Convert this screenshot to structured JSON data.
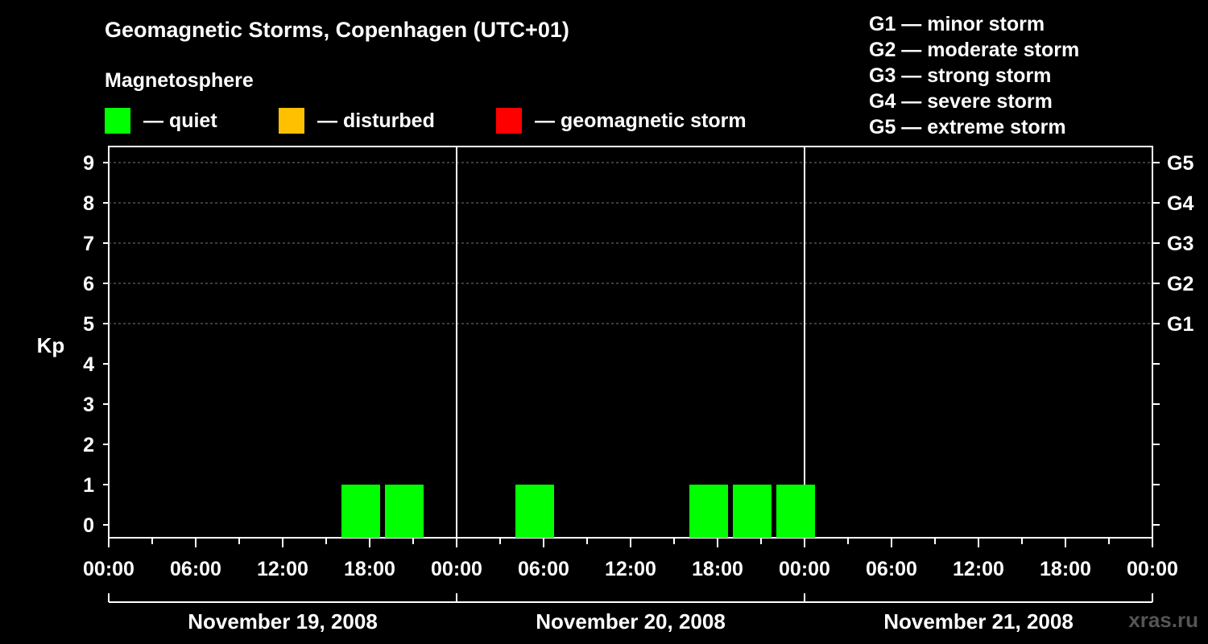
{
  "title": "Geomagnetic Storms, Copenhagen (UTC+01)",
  "legend": {
    "heading": "Magnetosphere",
    "items": [
      {
        "label": "— quiet",
        "color": "#00ff00"
      },
      {
        "label": "— disturbed",
        "color": "#ffc000"
      },
      {
        "label": "— geomagnetic storm",
        "color": "#ff0000"
      }
    ]
  },
  "g_scale": [
    "G1 — minor storm",
    "G2 — moderate storm",
    "G3 — strong storm",
    "G4 — severe storm",
    "G5 — extreme storm"
  ],
  "watermark": "xras.ru",
  "chart_data": {
    "type": "bar",
    "title": "Geomagnetic Storms, Copenhagen (UTC+01)",
    "ylabel": "Kp",
    "ylim": [
      0,
      9
    ],
    "xlim_hours": [
      0,
      72
    ],
    "bar_width_hours": 3,
    "y_ticks": [
      "0",
      "1",
      "2",
      "3",
      "4",
      "5",
      "6",
      "7",
      "8",
      "9"
    ],
    "right_ticks": [
      {
        "kp": 5,
        "label": "G1"
      },
      {
        "kp": 6,
        "label": "G2"
      },
      {
        "kp": 7,
        "label": "G3"
      },
      {
        "kp": 8,
        "label": "G4"
      },
      {
        "kp": 9,
        "label": "G5"
      }
    ],
    "x_tick_labels": [
      "00:00",
      "06:00",
      "12:00",
      "18:00",
      "00:00",
      "06:00",
      "12:00",
      "18:00",
      "00:00",
      "06:00",
      "12:00",
      "18:00",
      "00:00"
    ],
    "days": [
      "November 19, 2008",
      "November 20, 2008",
      "November 21, 2008"
    ],
    "bars": [
      {
        "start_hour": 16,
        "kp": 1,
        "status": "quiet"
      },
      {
        "start_hour": 19,
        "kp": 1,
        "status": "quiet"
      },
      {
        "start_hour": 28,
        "kp": 1,
        "status": "quiet"
      },
      {
        "start_hour": 40,
        "kp": 1,
        "status": "quiet"
      },
      {
        "start_hour": 43,
        "kp": 1,
        "status": "quiet"
      },
      {
        "start_hour": 46,
        "kp": 1,
        "status": "quiet"
      }
    ]
  }
}
